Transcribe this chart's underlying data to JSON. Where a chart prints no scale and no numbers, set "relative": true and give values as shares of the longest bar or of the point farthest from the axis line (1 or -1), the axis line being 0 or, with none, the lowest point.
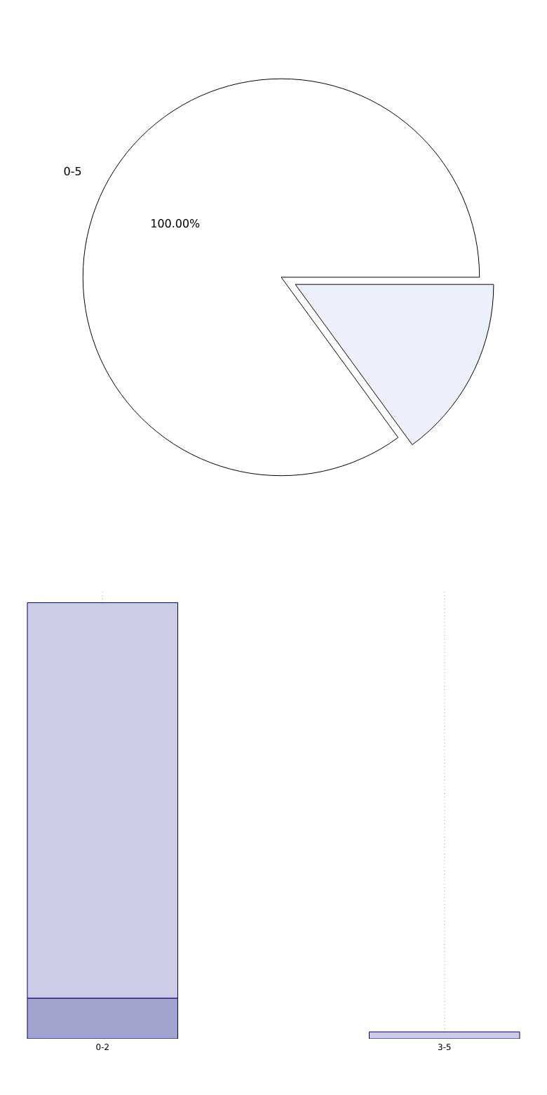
{
  "chart_data": [
    {
      "type": "pie",
      "categories": [
        "0-5",
        null
      ],
      "values": [
        100,
        17.6
      ],
      "colors": [
        "#ffffff",
        "#ebf0fc"
      ],
      "value_labels": [
        "100.00%",
        null
      ]
    },
    {
      "type": "bar",
      "categories": [
        "0-2",
        "3-5"
      ],
      "stacked": true,
      "relative": true,
      "grid": "x",
      "series": [
        {
          "color": "#a3a3cf",
          "values": [
            0.093,
            0
          ]
        },
        {
          "color": "#cccce4",
          "values": [
            0.907,
            0.016
          ]
        }
      ]
    }
  ]
}
